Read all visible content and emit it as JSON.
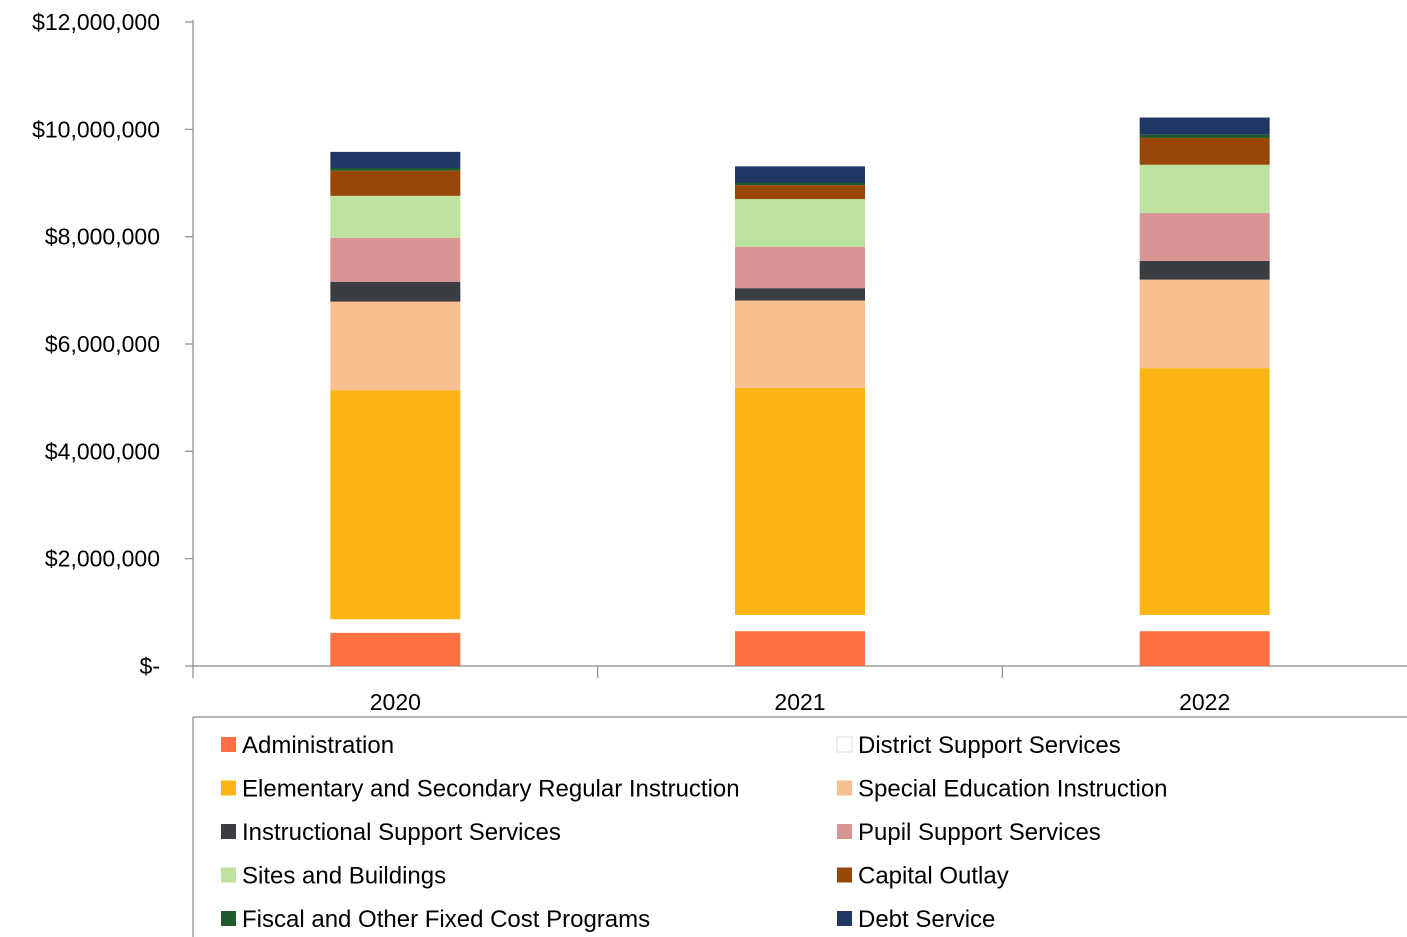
{
  "chart_data": {
    "type": "bar",
    "stacked": true,
    "categories": [
      "2020",
      "2021",
      "2022"
    ],
    "ylim": [
      0,
      12000000
    ],
    "yticks": [
      0,
      2000000,
      4000000,
      6000000,
      8000000,
      10000000,
      12000000
    ],
    "ytick_labels": [
      "$-",
      "$2,000,000",
      "$4,000,000",
      "$6,000,000",
      "$8,000,000",
      "$10,000,000",
      "$12,000,000"
    ],
    "grid": false,
    "legend_position": "bottom",
    "series": [
      {
        "name": "Administration",
        "color": "#FF7043",
        "values": [
          620000,
          650000,
          650000
        ]
      },
      {
        "name": "District Support Services",
        "color": "#FFFFFF",
        "values": [
          250000,
          300000,
          300000
        ]
      },
      {
        "name": "Elementary and Secondary Regular Instruction",
        "color": "#FDB515",
        "values": [
          4270000,
          4230000,
          4600000
        ]
      },
      {
        "name": "Special Education Instruction",
        "color": "#F8C090",
        "values": [
          1650000,
          1630000,
          1650000
        ]
      },
      {
        "name": "Instructional Support Services",
        "color": "#3A3D42",
        "values": [
          370000,
          230000,
          350000
        ]
      },
      {
        "name": "Pupil Support Services",
        "color": "#D99594",
        "values": [
          820000,
          770000,
          890000
        ]
      },
      {
        "name": "Sites and Buildings",
        "color": "#BDE39F",
        "values": [
          780000,
          890000,
          900000
        ]
      },
      {
        "name": "Capital Outlay",
        "color": "#994708",
        "values": [
          470000,
          260000,
          500000
        ]
      },
      {
        "name": "Fiscal and Other Fixed Cost Programs",
        "color": "#1E5B2A",
        "values": [
          50000,
          40000,
          60000
        ]
      },
      {
        "name": "Debt Service",
        "color": "#1F3864",
        "values": [
          300000,
          310000,
          320000
        ]
      }
    ]
  }
}
